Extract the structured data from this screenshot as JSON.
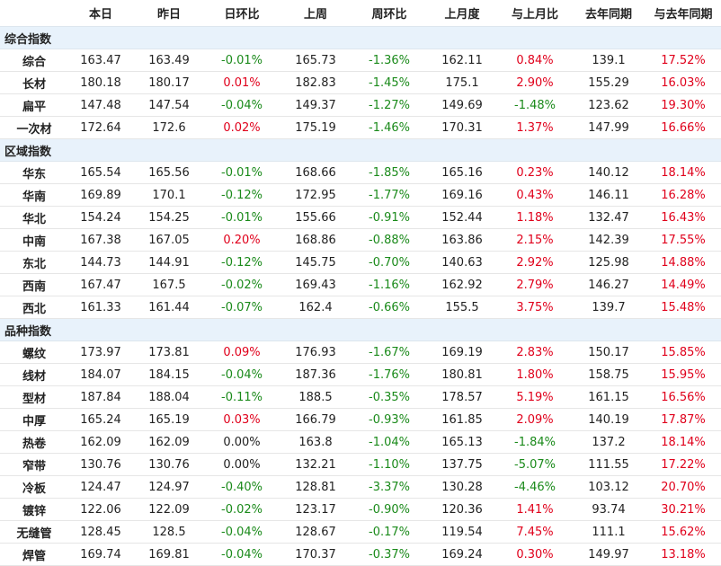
{
  "headers": [
    "",
    "本日",
    "昨日",
    "日环比",
    "上周",
    "周环比",
    "上月度",
    "与上月比",
    "去年同期",
    "与去年同期"
  ],
  "colors": {
    "up": "#e0001b",
    "down": "#1a8a1a",
    "section_bg": "#e8f2fb"
  },
  "sections": [
    {
      "title": "综合指数",
      "rows": [
        [
          "综合",
          "163.47",
          "163.49",
          "-0.01%",
          "165.73",
          "-1.36%",
          "162.11",
          "0.84%",
          "139.1",
          "17.52%"
        ],
        [
          "长材",
          "180.18",
          "180.17",
          "0.01%",
          "182.83",
          "-1.45%",
          "175.1",
          "2.90%",
          "155.29",
          "16.03%"
        ],
        [
          "扁平",
          "147.48",
          "147.54",
          "-0.04%",
          "149.37",
          "-1.27%",
          "149.69",
          "-1.48%",
          "123.62",
          "19.30%"
        ],
        [
          "一次材",
          "172.64",
          "172.6",
          "0.02%",
          "175.19",
          "-1.46%",
          "170.31",
          "1.37%",
          "147.99",
          "16.66%"
        ]
      ]
    },
    {
      "title": "区域指数",
      "rows": [
        [
          "华东",
          "165.54",
          "165.56",
          "-0.01%",
          "168.66",
          "-1.85%",
          "165.16",
          "0.23%",
          "140.12",
          "18.14%"
        ],
        [
          "华南",
          "169.89",
          "170.1",
          "-0.12%",
          "172.95",
          "-1.77%",
          "169.16",
          "0.43%",
          "146.11",
          "16.28%"
        ],
        [
          "华北",
          "154.24",
          "154.25",
          "-0.01%",
          "155.66",
          "-0.91%",
          "152.44",
          "1.18%",
          "132.47",
          "16.43%"
        ],
        [
          "中南",
          "167.38",
          "167.05",
          "0.20%",
          "168.86",
          "-0.88%",
          "163.86",
          "2.15%",
          "142.39",
          "17.55%"
        ],
        [
          "东北",
          "144.73",
          "144.91",
          "-0.12%",
          "145.75",
          "-0.70%",
          "140.63",
          "2.92%",
          "125.98",
          "14.88%"
        ],
        [
          "西南",
          "167.47",
          "167.5",
          "-0.02%",
          "169.43",
          "-1.16%",
          "162.92",
          "2.79%",
          "146.27",
          "14.49%"
        ],
        [
          "西北",
          "161.33",
          "161.44",
          "-0.07%",
          "162.4",
          "-0.66%",
          "155.5",
          "3.75%",
          "139.7",
          "15.48%"
        ]
      ]
    },
    {
      "title": "品种指数",
      "rows": [
        [
          "螺纹",
          "173.97",
          "173.81",
          "0.09%",
          "176.93",
          "-1.67%",
          "169.19",
          "2.83%",
          "150.17",
          "15.85%"
        ],
        [
          "线材",
          "184.07",
          "184.15",
          "-0.04%",
          "187.36",
          "-1.76%",
          "180.81",
          "1.80%",
          "158.75",
          "15.95%"
        ],
        [
          "型材",
          "187.84",
          "188.04",
          "-0.11%",
          "188.5",
          "-0.35%",
          "178.57",
          "5.19%",
          "161.15",
          "16.56%"
        ],
        [
          "中厚",
          "165.24",
          "165.19",
          "0.03%",
          "166.79",
          "-0.93%",
          "161.85",
          "2.09%",
          "140.19",
          "17.87%"
        ],
        [
          "热卷",
          "162.09",
          "162.09",
          "0.00%",
          "163.8",
          "-1.04%",
          "165.13",
          "-1.84%",
          "137.2",
          "18.14%"
        ],
        [
          "窄带",
          "130.76",
          "130.76",
          "0.00%",
          "132.21",
          "-1.10%",
          "137.75",
          "-5.07%",
          "111.55",
          "17.22%"
        ],
        [
          "冷板",
          "124.47",
          "124.97",
          "-0.40%",
          "128.81",
          "-3.37%",
          "130.28",
          "-4.46%",
          "103.12",
          "20.70%"
        ],
        [
          "镀锌",
          "122.06",
          "122.09",
          "-0.02%",
          "123.17",
          "-0.90%",
          "120.36",
          "1.41%",
          "93.74",
          "30.21%"
        ],
        [
          "无缝管",
          "128.45",
          "128.5",
          "-0.04%",
          "128.67",
          "-0.17%",
          "119.54",
          "7.45%",
          "111.1",
          "15.62%"
        ],
        [
          "焊管",
          "169.74",
          "169.81",
          "-0.04%",
          "170.37",
          "-0.37%",
          "169.24",
          "0.30%",
          "149.97",
          "13.18%"
        ]
      ]
    }
  ]
}
